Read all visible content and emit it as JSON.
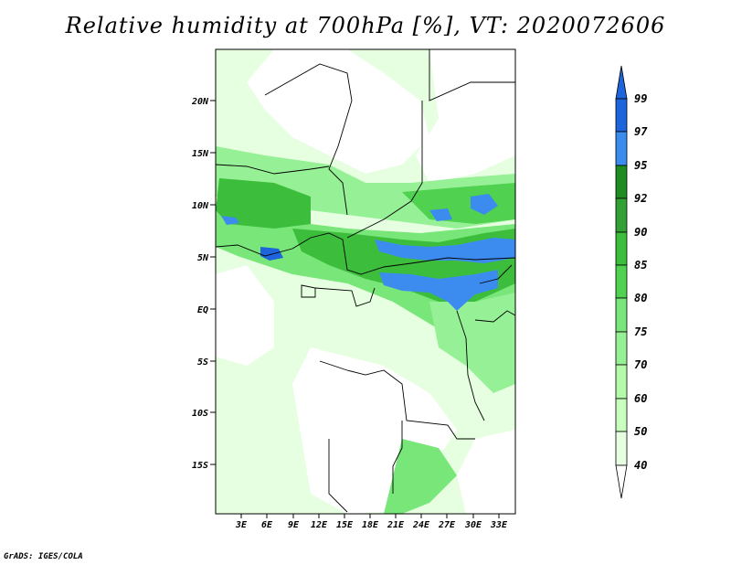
{
  "title": "Relative humidity at 700hPa [%], VT: 2020072606",
  "credit": "GrADS: IGES/COLA",
  "map": {
    "lat_labels": [
      "20N",
      "15N",
      "10N",
      "5N",
      "EQ",
      "5S",
      "10S",
      "15S"
    ],
    "lon_labels": [
      "3E",
      "6E",
      "9E",
      "12E",
      "15E",
      "18E",
      "21E",
      "24E",
      "27E",
      "30E",
      "33E"
    ],
    "lat_range": [
      -20,
      24.5
    ],
    "lon_range": [
      0,
      35
    ]
  },
  "colorbar": {
    "levels": [
      "99",
      "97",
      "95",
      "92",
      "90",
      "85",
      "80",
      "75",
      "70",
      "60",
      "50",
      "40"
    ],
    "colors": [
      "#1e64dc",
      "#3c8cf0",
      "#1e8c1e",
      "#32a032",
      "#3cbe3c",
      "#50d250",
      "#78e678",
      "#96f096",
      "#b4faaa",
      "#c8ffbe",
      "#e6ffe1",
      "#ffffff"
    ],
    "top_arrow_color": "#1e64dc",
    "bottom_arrow_color": "#ffffff"
  },
  "fill_colors": {
    "white": "#ffffff",
    "c40": "#e6ffe1",
    "c50": "#c8ffbe",
    "c60": "#b4faaa",
    "c70": "#96f096",
    "c75": "#78e678",
    "c80": "#50d250",
    "c85": "#3cbe3c",
    "c90": "#32a032",
    "c95": "#3c8cf0",
    "c97": "#1e64dc"
  }
}
